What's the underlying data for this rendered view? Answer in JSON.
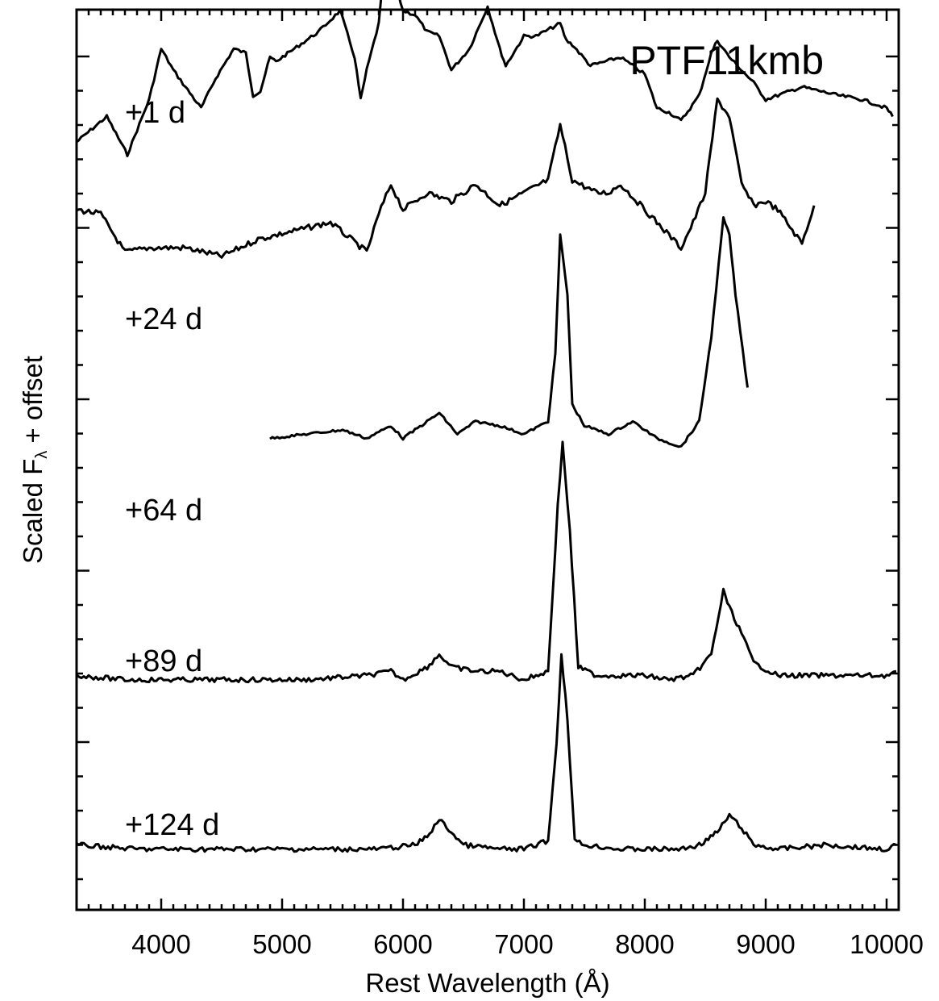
{
  "chart_data": {
    "type": "line",
    "title": "PTF11kmb",
    "xlabel": "Rest Wavelength (Å)",
    "ylabel_text": "Scaled F",
    "ylabel_sub": "λ",
    "ylabel_suffix": " + offset",
    "xlim": [
      3300,
      10100
    ],
    "x_ticks": [
      4000,
      5000,
      6000,
      7000,
      8000,
      9000,
      10000
    ],
    "x_tick_labels": [
      "4000",
      "5000",
      "6000",
      "7000",
      "8000",
      "9000",
      "10000"
    ],
    "y_ticks_numbered": false,
    "series": [
      {
        "name": "+1 d",
        "x": [
          3300,
          3550,
          3720,
          3900,
          4000,
          4100,
          4200,
          4330,
          4450,
          4600,
          4700,
          4760,
          4820,
          4900,
          4950,
          5100,
          5300,
          5480,
          5600,
          5650,
          5700,
          5800,
          5850,
          5900,
          6000,
          6100,
          6200,
          6300,
          6400,
          6550,
          6700,
          6800,
          6850,
          7000,
          7100,
          7300,
          7350,
          7400,
          7550,
          7800,
          8000,
          8100,
          8200,
          8300,
          8450,
          8550,
          8600,
          8700,
          8900,
          9000,
          9300,
          9600,
          9800,
          10000,
          10050
        ],
        "y": [
          4.8,
          5.1,
          4.65,
          5.3,
          5.9,
          5.65,
          5.45,
          5.2,
          5.55,
          5.9,
          5.85,
          5.35,
          5.4,
          5.8,
          5.75,
          5.9,
          6.1,
          6.35,
          5.8,
          5.3,
          5.65,
          6.2,
          6.95,
          6.85,
          6.35,
          6.3,
          6.1,
          6.05,
          5.65,
          5.9,
          6.4,
          5.9,
          5.7,
          6.05,
          6.05,
          6.2,
          6.0,
          5.95,
          5.7,
          5.8,
          5.6,
          5.2,
          5.15,
          5.05,
          5.35,
          5.85,
          6.0,
          5.8,
          5.5,
          5.3,
          5.45,
          5.35,
          5.3,
          5.2,
          5.1
        ]
      },
      {
        "name": "+24 d",
        "x": [
          3300,
          3500,
          3700,
          3900,
          4200,
          4500,
          4800,
          5100,
          5400,
          5700,
          5800,
          5900,
          6000,
          6200,
          6400,
          6600,
          6800,
          7000,
          7200,
          7300,
          7400,
          7600,
          7700,
          7800,
          8000,
          8200,
          8300,
          8400,
          8500,
          8600,
          8700,
          8800,
          8900,
          9000,
          9100,
          9200,
          9300,
          9400
        ],
        "y": [
          4.0,
          3.95,
          3.5,
          3.55,
          3.55,
          3.45,
          3.65,
          3.75,
          3.85,
          3.5,
          3.95,
          4.3,
          4.0,
          4.2,
          4.1,
          4.3,
          4.05,
          4.2,
          4.35,
          5.0,
          4.35,
          4.2,
          4.2,
          4.3,
          4.0,
          3.7,
          3.55,
          3.85,
          4.2,
          5.3,
          5.1,
          4.3,
          4.05,
          4.1,
          4.0,
          3.8,
          3.6,
          4.05
        ]
      },
      {
        "name": "+64 d",
        "x": [
          4900,
          5200,
          5500,
          5700,
          5900,
          6000,
          6200,
          6300,
          6450,
          6600,
          6800,
          7000,
          7200,
          7260,
          7300,
          7360,
          7400,
          7500,
          7700,
          7900,
          8100,
          8300,
          8450,
          8550,
          8650,
          8700,
          8750,
          8850
        ],
        "y": [
          1.3,
          1.35,
          1.4,
          1.3,
          1.45,
          1.3,
          1.5,
          1.6,
          1.35,
          1.5,
          1.45,
          1.35,
          1.5,
          2.3,
          3.7,
          3.0,
          1.7,
          1.45,
          1.35,
          1.5,
          1.3,
          1.2,
          1.5,
          2.5,
          3.9,
          3.7,
          3.0,
          1.9
        ]
      },
      {
        "name": "+89 d",
        "x": [
          3300,
          3700,
          4200,
          4700,
          5200,
          5700,
          5900,
          6000,
          6200,
          6300,
          6400,
          6600,
          6800,
          7000,
          7200,
          7280,
          7320,
          7380,
          7450,
          7600,
          7800,
          8000,
          8200,
          8400,
          8550,
          8650,
          8700,
          8800,
          8900,
          9100,
          9500,
          10000,
          10080
        ],
        "y": [
          -1.5,
          -1.55,
          -1.55,
          -1.55,
          -1.55,
          -1.5,
          -1.45,
          -1.55,
          -1.4,
          -1.25,
          -1.4,
          -1.45,
          -1.45,
          -1.55,
          -1.45,
          0.5,
          1.25,
          0.2,
          -1.4,
          -1.5,
          -1.5,
          -1.5,
          -1.55,
          -1.5,
          -1.25,
          -0.5,
          -0.7,
          -1.0,
          -1.35,
          -1.5,
          -1.5,
          -1.5,
          -1.45
        ]
      },
      {
        "name": "+124 d",
        "x": [
          3300,
          3800,
          4300,
          4800,
          5300,
          5800,
          6100,
          6200,
          6300,
          6400,
          6500,
          6800,
          7000,
          7200,
          7270,
          7310,
          7360,
          7420,
          7500,
          7800,
          8100,
          8300,
          8450,
          8600,
          8700,
          8800,
          8900,
          9100,
          9500,
          10000,
          10080
        ],
        "y": [
          -3.5,
          -3.55,
          -3.55,
          -3.55,
          -3.55,
          -3.55,
          -3.5,
          -3.4,
          -3.2,
          -3.35,
          -3.5,
          -3.55,
          -3.55,
          -3.45,
          -2.3,
          -1.25,
          -2.0,
          -3.45,
          -3.5,
          -3.55,
          -3.55,
          -3.55,
          -3.5,
          -3.35,
          -3.15,
          -3.3,
          -3.5,
          -3.55,
          -3.5,
          -3.55,
          -3.5
        ]
      }
    ]
  }
}
